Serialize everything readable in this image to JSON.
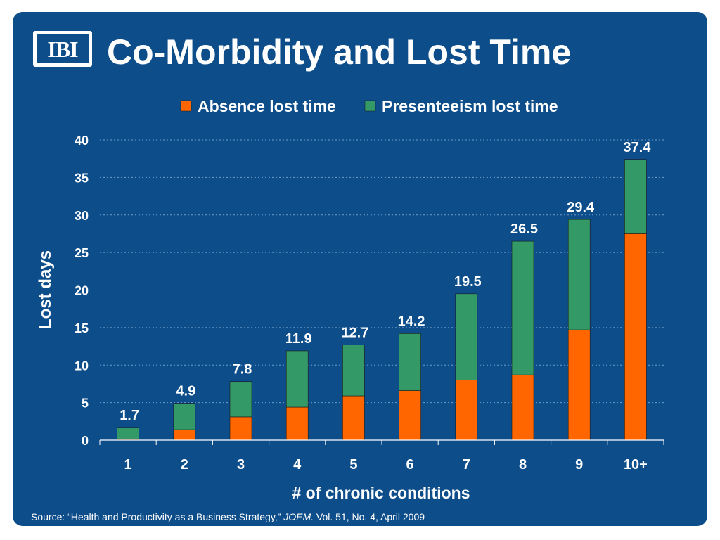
{
  "slide": {
    "title": "Co-Morbidity and Lost Time",
    "logo_text": "IBI",
    "source_prefix": "Source: “Health and Productivity as a Business Strategy,” ",
    "source_journal": "JOEM.",
    "source_suffix": " Vol. 51, No. 4, April 2009"
  },
  "colors": {
    "background": "#0d4d8a",
    "absence": "#ff6600",
    "presenteeism": "#339966",
    "text": "#ffffff"
  },
  "chart_data": {
    "type": "bar",
    "stacked": true,
    "categories": [
      "1",
      "2",
      "3",
      "4",
      "5",
      "6",
      "7",
      "8",
      "9",
      "10+"
    ],
    "series": [
      {
        "name": "Absence lost time",
        "values": [
          0.1,
          1.4,
          3.1,
          4.4,
          5.9,
          6.6,
          8.0,
          8.7,
          14.7,
          27.5
        ]
      },
      {
        "name": "Presenteeism lost time",
        "values": [
          1.6,
          3.5,
          4.7,
          7.5,
          6.8,
          7.6,
          11.5,
          17.8,
          14.7,
          9.9
        ]
      }
    ],
    "totals": [
      "1.7",
      "4.9",
      "7.8",
      "11.9",
      "12.7",
      "14.2",
      "19.5",
      "26.5",
      "29.4",
      "37.4"
    ],
    "ylabel": "Lost days",
    "xlabel": "# of chronic conditions",
    "ylim": [
      0,
      40
    ],
    "yticks": [
      "0",
      "5",
      "10",
      "15",
      "20",
      "25",
      "30",
      "35",
      "40"
    ],
    "grid": true,
    "legend_position": "top"
  }
}
